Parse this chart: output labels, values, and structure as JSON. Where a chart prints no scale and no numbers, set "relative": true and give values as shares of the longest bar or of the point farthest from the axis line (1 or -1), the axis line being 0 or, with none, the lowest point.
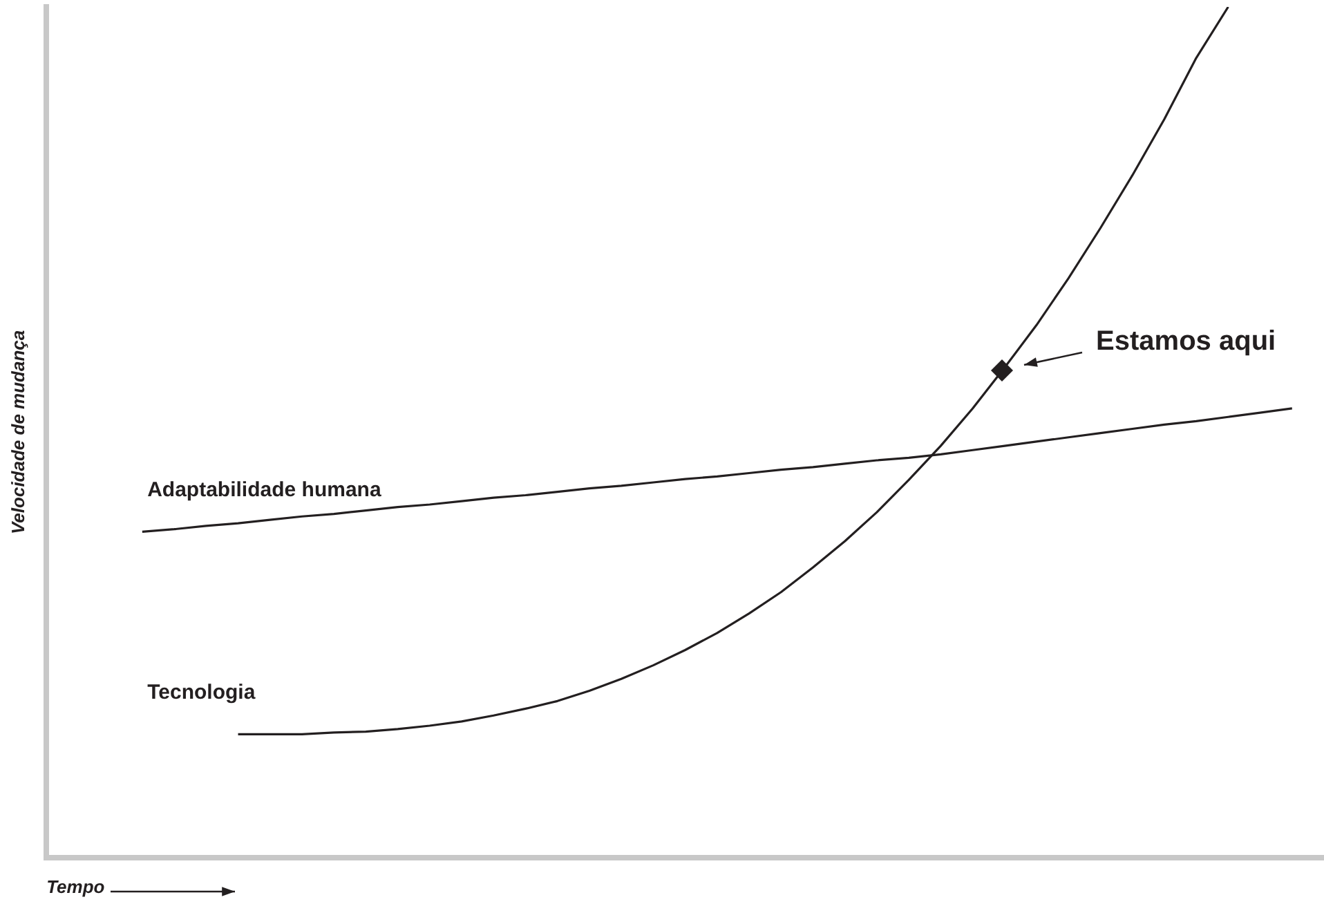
{
  "chart_data": {
    "type": "line",
    "xlabel": "Tempo",
    "ylabel": "Velocidade de mudança",
    "relative": true,
    "tick_labels": false,
    "grid": false,
    "marker": "none",
    "line_style": "solid",
    "categories": [
      null,
      null,
      null,
      null,
      null,
      null,
      null,
      null,
      null,
      null,
      null,
      null,
      null,
      null,
      null,
      null,
      null,
      null,
      null,
      null,
      null,
      null,
      null,
      null,
      null,
      null,
      null,
      null,
      null,
      null,
      null,
      null,
      null,
      null,
      null,
      null,
      null,
      null,
      null,
      null,
      null
    ],
    "series": [
      {
        "name": "Adaptabilidade humana",
        "color": "#231f20",
        "values": [
          null,
          null,
          null,
          0.383,
          0.386,
          0.39,
          0.393,
          0.397,
          0.401,
          0.404,
          0.408,
          0.412,
          0.415,
          0.419,
          0.423,
          0.426,
          0.43,
          0.434,
          0.437,
          0.441,
          0.445,
          0.448,
          0.452,
          0.456,
          0.459,
          0.463,
          0.467,
          0.47,
          0.474,
          0.479,
          0.484,
          0.489,
          0.494,
          0.499,
          0.504,
          0.509,
          0.513,
          0.518,
          0.523,
          0.528,
          null
        ]
      },
      {
        "name": "Tecnologia",
        "color": "#231f20",
        "values": [
          null,
          null,
          null,
          null,
          null,
          null,
          0.145,
          0.145,
          0.145,
          0.147,
          0.148,
          0.151,
          0.155,
          0.16,
          0.167,
          0.175,
          0.184,
          0.196,
          0.21,
          0.226,
          0.244,
          0.264,
          0.287,
          0.312,
          0.341,
          0.372,
          0.406,
          0.444,
          0.484,
          0.528,
          0.576,
          0.626,
          0.681,
          0.74,
          0.802,
          0.868,
          0.94,
          1,
          null,
          null,
          null
        ]
      }
    ],
    "annotations": [
      "Estamos aqui"
    ]
  }
}
